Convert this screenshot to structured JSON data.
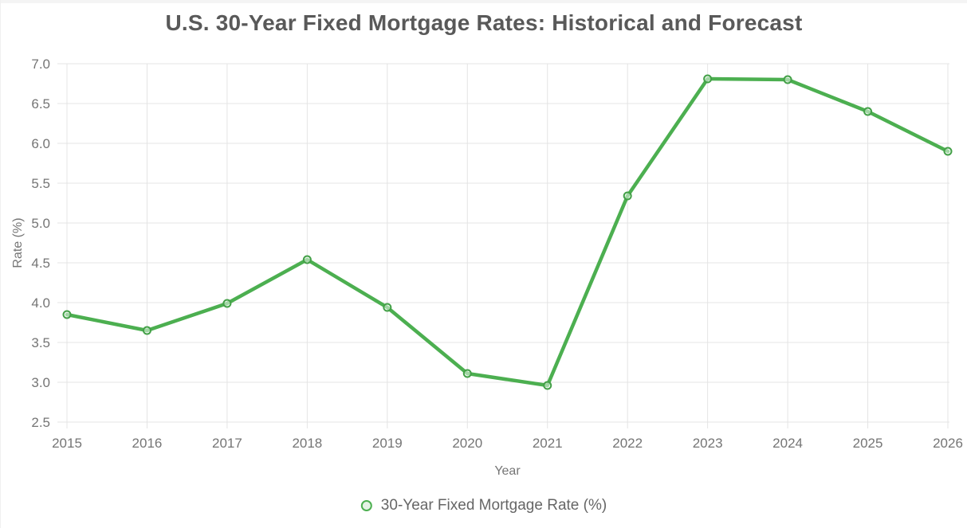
{
  "chart_data": {
    "type": "line",
    "title": "U.S. 30-Year Fixed Mortgage Rates: Historical and Forecast",
    "xlabel": "Year",
    "ylabel": "Rate (%)",
    "categories": [
      "2015",
      "2016",
      "2017",
      "2018",
      "2019",
      "2020",
      "2021",
      "2022",
      "2023",
      "2024",
      "2025",
      "2026"
    ],
    "series": [
      {
        "name": "30-Year Fixed Mortgage Rate (%)",
        "values": [
          3.85,
          3.65,
          3.99,
          4.54,
          3.94,
          3.11,
          2.96,
          5.34,
          6.81,
          6.8,
          6.4,
          5.9
        ],
        "color": "#4caf50",
        "marker_border": "#43a047",
        "marker_fill": "#e8f5e9"
      }
    ],
    "ylim": [
      2.5,
      7.0
    ],
    "ytick_step": 0.5,
    "ytick_decimals": 1,
    "grid": true,
    "legend_position": "bottom",
    "colors": {
      "grid": "#e4e4e4",
      "tick_label": "#757575",
      "axis_title": "#757575",
      "title": "#595959",
      "legend_text": "#666666"
    }
  }
}
